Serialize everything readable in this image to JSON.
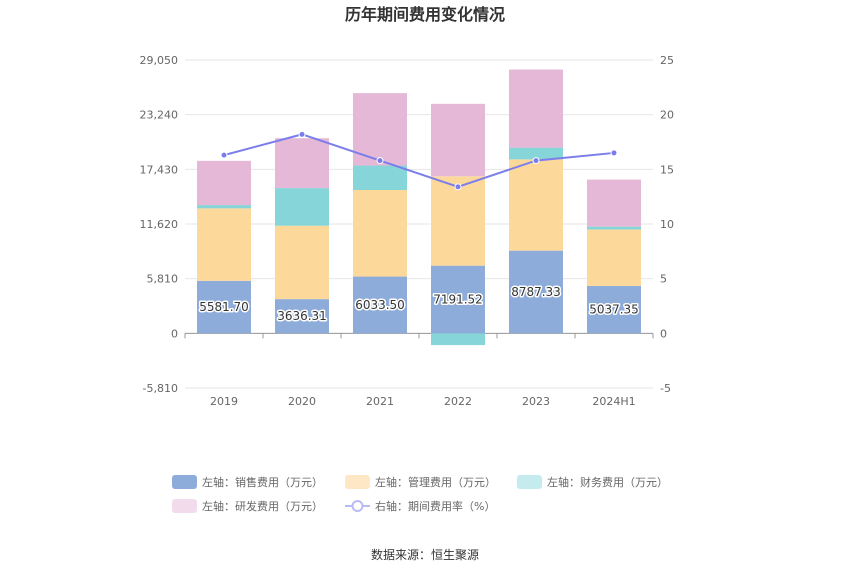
{
  "chart_data": {
    "type": "bar",
    "stacked": true,
    "title": "历年期间费用变化情况",
    "categories": [
      "2019",
      "2020",
      "2021",
      "2022",
      "2023",
      "2024H1"
    ],
    "left_axis": {
      "ticks": [
        "29,050",
        "23,240",
        "17,430",
        "11,620",
        "5,810",
        "0",
        "-5,810"
      ],
      "ylim": [
        -5810,
        29050
      ]
    },
    "right_axis": {
      "ticks": [
        "25",
        "20",
        "15",
        "10",
        "5",
        "0",
        "-5"
      ],
      "ylim": [
        -5,
        25
      ]
    },
    "series": [
      {
        "name": "左轴：销售费用（万元）",
        "axis": "left",
        "color": "#8eacd9",
        "values": [
          5581.7,
          3636.31,
          6033.5,
          7191.52,
          8787.33,
          5037.35
        ],
        "labels": [
          "5581.70",
          "3636.31",
          "6033.50",
          "7191.52",
          "8787.33",
          "5037.35"
        ]
      },
      {
        "name": "左轴：管理费用（万元）",
        "axis": "left",
        "color": "#fdd89b",
        "values": [
          7700,
          7800,
          9200,
          9500,
          9700,
          6000
        ]
      },
      {
        "name": "左轴：财务费用（万元）",
        "axis": "left",
        "color": "#86d5d8",
        "values": [
          350,
          4000,
          2600,
          -1250,
          1250,
          300
        ]
      },
      {
        "name": "左轴：研发费用（万元）",
        "axis": "left",
        "color": "#e6b8d8",
        "values": [
          4700,
          5300,
          7700,
          7700,
          8300,
          5000
        ]
      },
      {
        "name": "右轴：期间费用率（%）",
        "axis": "right",
        "type": "line",
        "color": "#7b7eea",
        "values": [
          16.3,
          18.2,
          15.8,
          13.4,
          15.8,
          16.5
        ]
      }
    ],
    "legend": [
      {
        "label": "左轴：销售费用（万元）",
        "color": "#8eacd9",
        "kind": "rect"
      },
      {
        "label": "左轴：管理费用（万元）",
        "color": "#fde7c4",
        "kind": "rect"
      },
      {
        "label": "左轴：财务费用（万元）",
        "color": "#c4ecee",
        "kind": "rect"
      },
      {
        "label": "左轴：研发费用（万元）",
        "color": "#f2dcec",
        "kind": "rect"
      },
      {
        "label": "右轴：期间费用率（%）",
        "color": "#b9bbf4",
        "kind": "line"
      }
    ],
    "legend_position": "bottom",
    "grid": true
  },
  "source_text": "数据来源：恒生聚源"
}
